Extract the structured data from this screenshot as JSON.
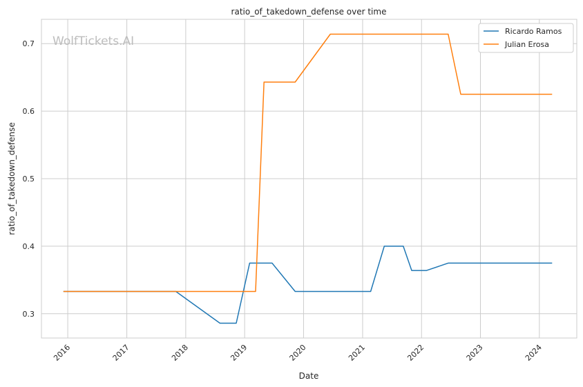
{
  "chart_data": {
    "type": "line",
    "title": "ratio_of_takedown_defense over time",
    "xlabel": "Date",
    "ylabel": "ratio_of_takedown_defense",
    "watermark": "WolfTickets.AI",
    "x_ticks": [
      "2016",
      "2017",
      "2018",
      "2019",
      "2020",
      "2021",
      "2022",
      "2023",
      "2024"
    ],
    "y_ticks": [
      "0.3",
      "0.4",
      "0.5",
      "0.6",
      "0.7"
    ],
    "xlim": [
      "2015-07-22",
      "2024-08-20"
    ],
    "ylim": [
      0.264,
      0.736
    ],
    "grid": true,
    "legend_position": "top-right",
    "series": [
      {
        "name": "Ricardo Ramos",
        "color": "#1f77b4",
        "points": [
          [
            "2015-12-05",
            0.333
          ],
          [
            "2017-11-01",
            0.333
          ],
          [
            "2018-08-01",
            0.286
          ],
          [
            "2018-11-10",
            0.286
          ],
          [
            "2019-02-01",
            0.375
          ],
          [
            "2019-06-20",
            0.375
          ],
          [
            "2019-11-10",
            0.333
          ],
          [
            "2021-02-20",
            0.333
          ],
          [
            "2021-05-15",
            0.4
          ],
          [
            "2021-09-10",
            0.4
          ],
          [
            "2021-11-01",
            0.364
          ],
          [
            "2022-02-01",
            0.364
          ],
          [
            "2022-06-15",
            0.375
          ],
          [
            "2024-03-20",
            0.375
          ]
        ]
      },
      {
        "name": "Julian Erosa",
        "color": "#ff7f0e",
        "points": [
          [
            "2015-12-05",
            0.333
          ],
          [
            "2019-03-10",
            0.333
          ],
          [
            "2019-05-01",
            0.643
          ],
          [
            "2019-11-10",
            0.643
          ],
          [
            "2020-06-15",
            0.714
          ],
          [
            "2022-06-15",
            0.714
          ],
          [
            "2022-09-01",
            0.625
          ],
          [
            "2024-03-20",
            0.625
          ]
        ]
      }
    ]
  }
}
